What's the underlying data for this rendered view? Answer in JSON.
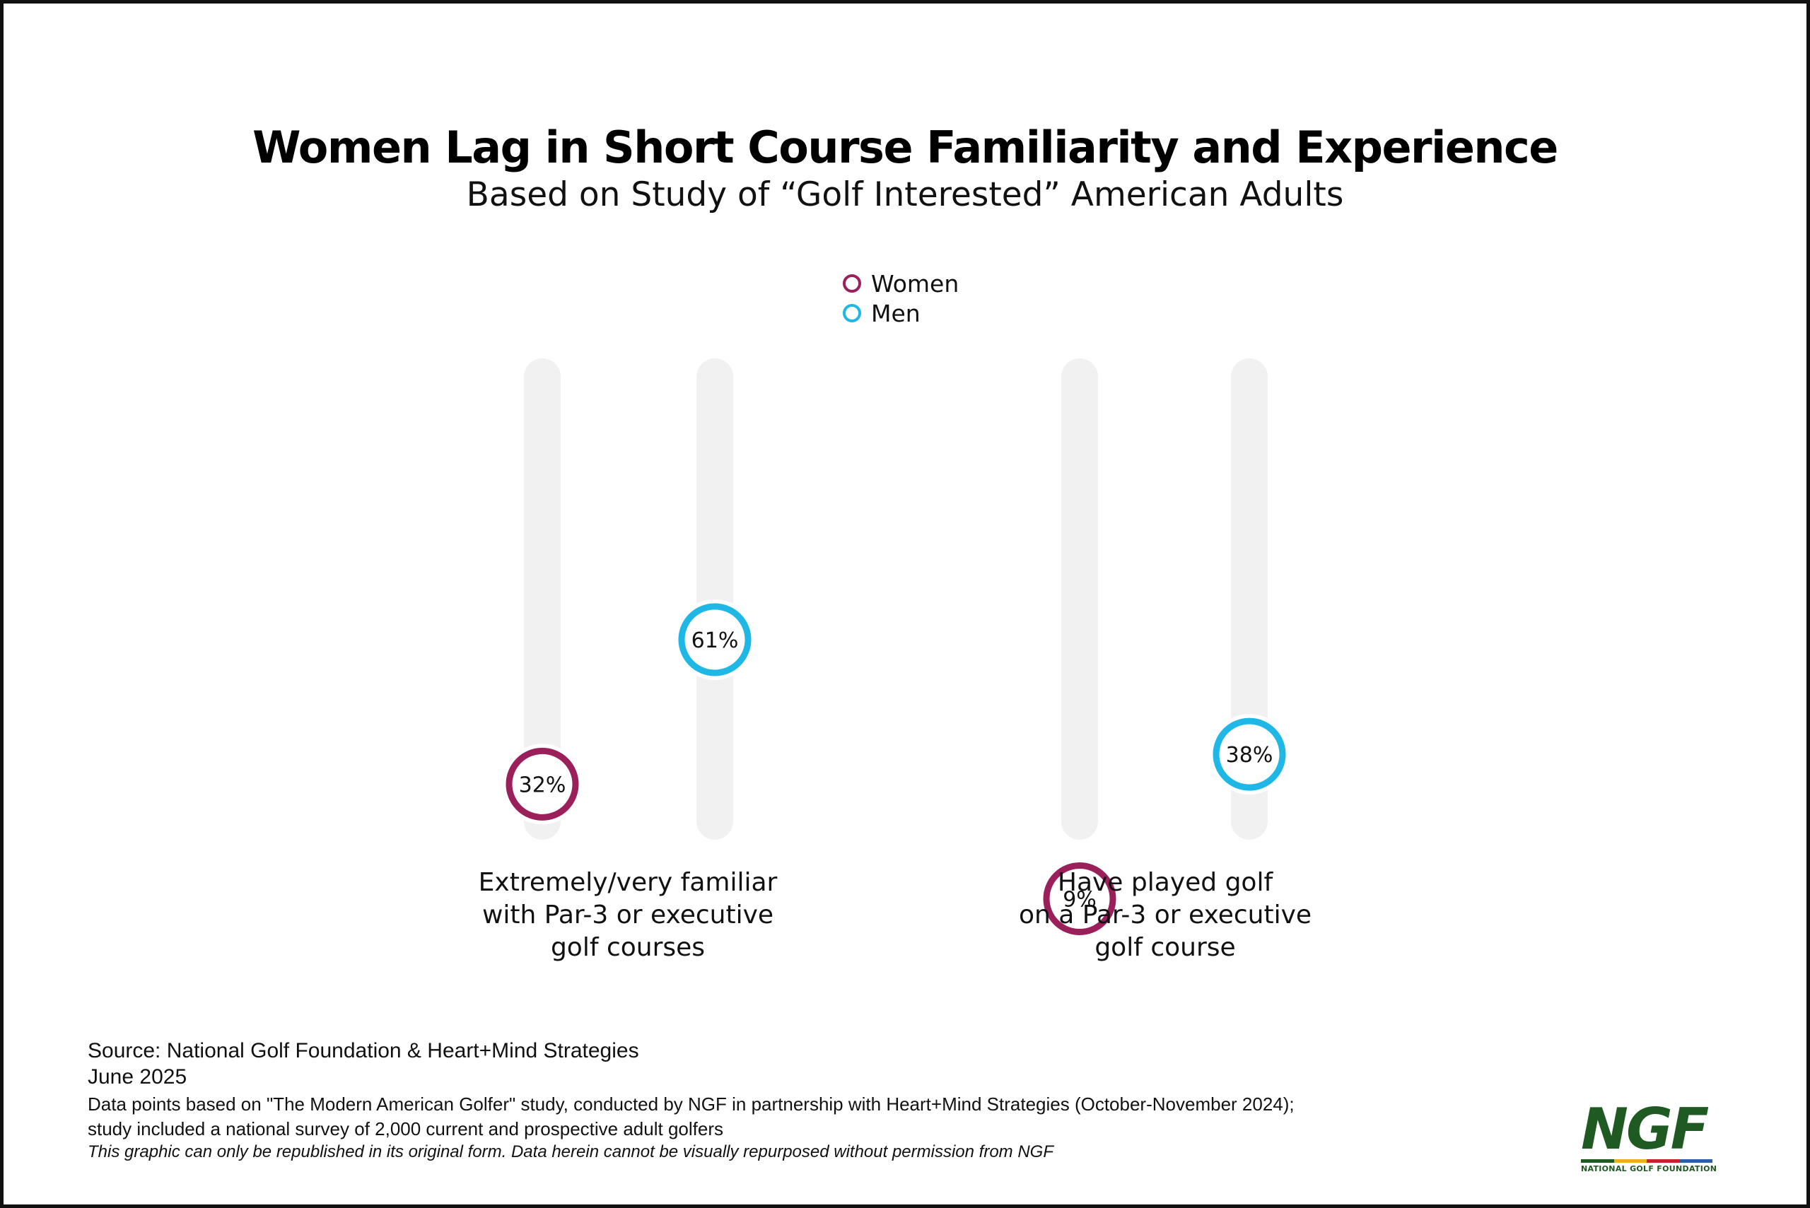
{
  "title": "Women Lag in Short Course Familiarity and Experience",
  "subtitle": "Based on Study of “Golf Interested” American Adults",
  "legend": [
    {
      "label": "Women",
      "color": "#9b1f5b"
    },
    {
      "label": "Men",
      "color": "#1fb8e6"
    }
  ],
  "chart_data": {
    "type": "dot",
    "ylim": [
      0,
      100
    ],
    "categories": [
      {
        "label_lines": [
          "Extremely/very familiar",
          "with Par-3 or executive",
          "golf courses"
        ]
      },
      {
        "label_lines": [
          "Have played golf",
          "on a Par-3 or executive",
          "golf course"
        ]
      }
    ],
    "series": [
      {
        "name": "Women",
        "color": "#9b1f5b",
        "values": [
          32,
          9
        ],
        "labels": [
          "32%",
          "9%"
        ]
      },
      {
        "name": "Men",
        "color": "#1fb8e6",
        "values": [
          61,
          38
        ],
        "labels": [
          "61%",
          "38%"
        ]
      }
    ]
  },
  "source": {
    "line1": "Source: National Golf Foundation & Heart+Mind Strategies",
    "line2": "June 2025",
    "line3": "Data points based on \"The Modern American Golfer\" study, conducted by NGF in partnership with Heart+Mind Strategies (October-November 2024);",
    "line4": "study included a national survey of 2,000 current and prospective adult golfers",
    "line5": "This graphic can only be republished in its original form. Data herein cannot be visually repurposed without permission from NGF"
  },
  "logo": {
    "text": "NGF",
    "subtext": "NATIONAL GOLF FOUNDATION",
    "color": "#1f5a23",
    "stripe_colors": [
      "#1f5a23",
      "#e8b21c",
      "#c8202e",
      "#2b5fa8"
    ]
  }
}
